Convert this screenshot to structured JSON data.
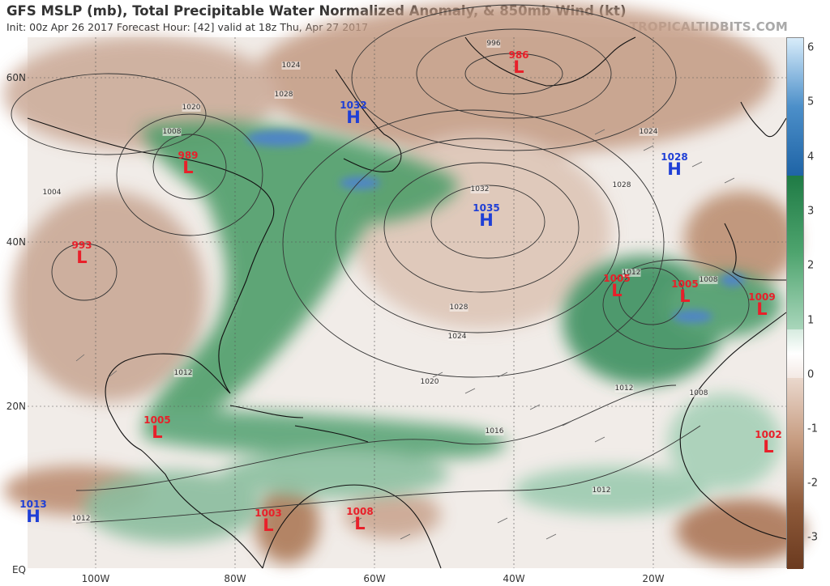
{
  "header": {
    "title": "GFS MSLP (mb), Total Precipitable Water Normalized Anomaly, & 850mb Wind (kt)",
    "subtitle": "Init: 00z Apr 26 2017   Forecast Hour: [42]   valid at 18z Thu, Apr 27 2017",
    "credit": "TROPICALTIDBITS.COM"
  },
  "axes": {
    "lat_labels": [
      "60N",
      "40N",
      "20N",
      "EQ"
    ],
    "lon_labels": [
      "100W",
      "80W",
      "60W",
      "40W",
      "20W"
    ]
  },
  "colorbar": {
    "labels": [
      "6",
      "5",
      "4",
      "3",
      "2",
      "1",
      "0",
      "-1",
      "-2",
      "-3"
    ],
    "colors": {
      "positive_high": "#4f91c8",
      "positive": "#2f8f4e",
      "neutral": "#ffffff",
      "negative": "#8c5a3a"
    }
  },
  "pressure_centers": [
    {
      "type": "low",
      "symbol": "L",
      "value": "986"
    },
    {
      "type": "high",
      "symbol": "H",
      "value": "1032"
    },
    {
      "type": "low",
      "symbol": "L",
      "value": "989"
    },
    {
      "type": "low",
      "symbol": "L",
      "value": "993"
    },
    {
      "type": "high",
      "symbol": "H",
      "value": "1035"
    },
    {
      "type": "high",
      "symbol": "H",
      "value": "1028"
    },
    {
      "type": "low",
      "symbol": "L",
      "value": "1005"
    },
    {
      "type": "low",
      "symbol": "L",
      "value": "1005"
    },
    {
      "type": "low",
      "symbol": "L",
      "value": "1009"
    },
    {
      "type": "low",
      "symbol": "L",
      "value": "1005"
    },
    {
      "type": "low",
      "symbol": "L",
      "value": "1002"
    },
    {
      "type": "high",
      "symbol": "H",
      "value": "1013"
    },
    {
      "type": "low",
      "symbol": "L",
      "value": "1003"
    },
    {
      "type": "low",
      "symbol": "L",
      "value": "1008"
    }
  ],
  "isobar_labels": [
    "996",
    "1024",
    "1028",
    "1020",
    "1008",
    "1004",
    "1032",
    "1028",
    "1024",
    "1020",
    "1016",
    "1012",
    "1012",
    "1008",
    "1012",
    "1012",
    "1028",
    "1024",
    "1008",
    "1012"
  ]
}
